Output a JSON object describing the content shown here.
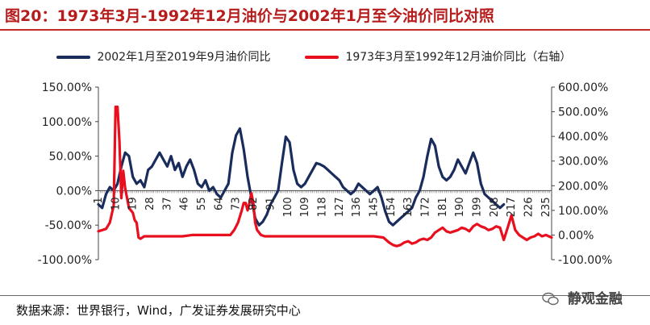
{
  "header": {
    "title": "图20：1973年3月-1992年12月油价与2002年1月至今油价同比对照"
  },
  "colors": {
    "series_navy": "#1a2c5c",
    "series_red": "#e8101e",
    "title_red": "#b71c1c",
    "axis": "#444444"
  },
  "chart_data": {
    "type": "line",
    "x": [
      1,
      10,
      19,
      28,
      37,
      46,
      55,
      64,
      73,
      82,
      91,
      100,
      109,
      118,
      127,
      136,
      145,
      154,
      163,
      172,
      181,
      190,
      199,
      208,
      217,
      226,
      235
    ],
    "xticks": [
      "1",
      "10",
      "19",
      "28",
      "37",
      "46",
      "55",
      "64",
      "73",
      "82",
      "91",
      "100",
      "109",
      "118",
      "127",
      "136",
      "145",
      "154",
      "163",
      "172",
      "181",
      "190",
      "199",
      "208",
      "217",
      "226",
      "235"
    ],
    "xlim": [
      1,
      238
    ],
    "left_axis": {
      "ylim": [
        -1.0,
        1.5
      ],
      "ticks": [
        "150.00%",
        "100.00%",
        "50.00%",
        "0.00%",
        "-50.00%",
        "-100.00%"
      ],
      "tick_values": [
        1.5,
        1.0,
        0.5,
        0.0,
        -0.5,
        -1.0
      ]
    },
    "right_axis": {
      "ylim": [
        -1.0,
        6.0
      ],
      "ticks": [
        "600.00%",
        "500.00%",
        "400.00%",
        "300.00%",
        "200.00%",
        "100.00%",
        "0.00%",
        "-100.00%"
      ],
      "tick_values": [
        6.0,
        5.0,
        4.0,
        3.0,
        2.0,
        1.0,
        0.0,
        -1.0
      ]
    },
    "series": [
      {
        "name": "2002年1月至2019年9月油价同比",
        "axis": "left",
        "color": "#1a2c5c",
        "x": [
          1,
          3,
          5,
          7,
          9,
          11,
          13,
          15,
          17,
          19,
          21,
          23,
          25,
          27,
          29,
          31,
          33,
          35,
          37,
          39,
          41,
          43,
          45,
          47,
          49,
          51,
          53,
          55,
          57,
          59,
          61,
          63,
          65,
          67,
          69,
          71,
          73,
          75,
          77,
          79,
          81,
          83,
          85,
          87,
          89,
          91,
          93,
          95,
          97,
          99,
          101,
          103,
          105,
          107,
          109,
          111,
          113,
          115,
          117,
          119,
          121,
          123,
          125,
          127,
          129,
          131,
          133,
          135,
          137,
          139,
          141,
          143,
          145,
          147,
          149,
          151,
          153,
          155,
          157,
          159,
          161,
          163,
          165,
          167,
          169,
          171,
          173,
          175,
          177,
          179,
          181,
          183,
          185,
          187,
          189,
          191,
          193,
          195,
          197,
          199,
          201,
          203,
          205,
          207,
          209,
          211,
          213
        ],
        "y": [
          -0.2,
          -0.25,
          -0.05,
          0.05,
          0.0,
          0.1,
          0.35,
          0.55,
          0.5,
          0.2,
          0.1,
          0.15,
          0.05,
          0.3,
          0.35,
          0.45,
          0.55,
          0.45,
          0.35,
          0.5,
          0.3,
          0.4,
          0.2,
          0.35,
          0.45,
          0.3,
          0.1,
          0.05,
          0.15,
          0.0,
          0.05,
          -0.05,
          -0.1,
          0.0,
          0.1,
          0.55,
          0.8,
          0.9,
          0.6,
          0.2,
          -0.1,
          -0.4,
          -0.5,
          -0.45,
          -0.35,
          -0.2,
          -0.1,
          0.0,
          0.4,
          0.78,
          0.7,
          0.3,
          0.1,
          0.05,
          0.1,
          0.2,
          0.3,
          0.4,
          0.38,
          0.35,
          0.3,
          0.25,
          0.2,
          0.15,
          0.05,
          0.0,
          -0.05,
          0.0,
          0.1,
          0.05,
          0.0,
          -0.05,
          0.0,
          0.05,
          -0.1,
          -0.3,
          -0.45,
          -0.5,
          -0.45,
          -0.4,
          -0.35,
          -0.3,
          -0.25,
          -0.1,
          0.0,
          0.2,
          0.5,
          0.75,
          0.65,
          0.35,
          0.2,
          0.15,
          0.2,
          0.3,
          0.45,
          0.35,
          0.25,
          0.4,
          0.55,
          0.4,
          0.1,
          -0.05,
          -0.1,
          -0.15,
          -0.2,
          -0.25,
          -0.2
        ]
      },
      {
        "name": "1973年3月至1992年12月油价同比（右轴）",
        "axis": "right",
        "color": "#e8101e",
        "x": [
          1,
          5,
          7,
          9,
          10,
          11,
          12,
          13,
          14,
          15,
          17,
          19,
          20,
          21,
          22,
          23,
          25,
          27,
          30,
          35,
          40,
          45,
          50,
          55,
          60,
          65,
          70,
          72,
          74,
          76,
          77,
          78,
          79,
          80,
          81,
          82,
          83,
          84,
          86,
          88,
          90,
          95,
          100,
          105,
          110,
          115,
          120,
          125,
          130,
          135,
          140,
          145,
          150,
          153,
          155,
          157,
          159,
          161,
          163,
          165,
          167,
          169,
          171,
          173,
          175,
          177,
          179,
          181,
          183,
          185,
          187,
          189,
          191,
          193,
          195,
          197,
          199,
          201,
          203,
          205,
          207,
          209,
          211,
          213,
          215,
          217,
          219,
          221,
          223,
          225,
          227,
          229,
          231,
          233,
          235,
          238
        ],
        "y": [
          0.15,
          0.25,
          0.5,
          1.2,
          5.2,
          5.2,
          3.8,
          1.5,
          2.6,
          1.9,
          1.1,
          0.9,
          0.6,
          0.5,
          -0.1,
          -0.15,
          -0.05,
          -0.05,
          -0.05,
          -0.05,
          -0.05,
          -0.05,
          0.0,
          0.0,
          0.0,
          0.0,
          0.0,
          0.2,
          0.5,
          1.0,
          1.3,
          1.3,
          1.0,
          1.3,
          1.7,
          1.3,
          0.5,
          0.2,
          0.0,
          -0.05,
          -0.05,
          -0.05,
          -0.05,
          -0.05,
          -0.05,
          -0.05,
          -0.05,
          -0.05,
          -0.05,
          -0.05,
          -0.05,
          -0.05,
          -0.1,
          -0.3,
          -0.4,
          -0.45,
          -0.4,
          -0.3,
          -0.25,
          -0.35,
          -0.3,
          -0.2,
          -0.15,
          -0.2,
          -0.1,
          0.1,
          0.2,
          0.3,
          0.15,
          0.1,
          0.15,
          0.2,
          0.3,
          0.25,
          0.15,
          0.35,
          0.45,
          0.35,
          0.3,
          0.2,
          0.25,
          0.35,
          0.3,
          -0.2,
          0.3,
          0.8,
          0.2,
          0.0,
          -0.1,
          -0.2,
          -0.1,
          -0.05,
          0.05,
          -0.05,
          0.0,
          -0.1
        ]
      }
    ]
  },
  "legend": {
    "item1": "2002年1月至2019年9月油价同比",
    "item2": "1973年3月至1992年12月油价同比（右轴）"
  },
  "footer": {
    "source": "数据来源：世界银行，Wind，广发证券发展研究中心",
    "watermark": "静观金融"
  }
}
